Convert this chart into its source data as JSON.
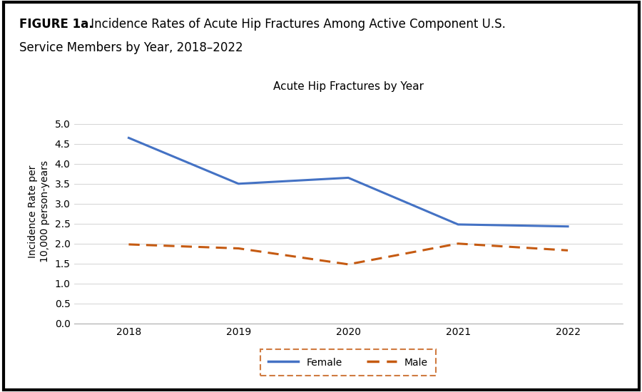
{
  "title": "Acute Hip Fractures by Year",
  "figure_label": "FIGURE 1a.",
  "figure_title_rest": " Incidence Rates of Acute Hip Fractures Among Active Component U.S.\nService Members by Year, 2018–2022",
  "xlabel": "",
  "ylabel": "Incidence Rate per\n10,000 person-years",
  "years": [
    2018,
    2019,
    2020,
    2021,
    2022
  ],
  "female_values": [
    4.65,
    3.5,
    3.65,
    2.48,
    2.43
  ],
  "male_values": [
    1.98,
    1.88,
    1.48,
    2.0,
    1.83
  ],
  "female_color": "#4472C4",
  "male_color": "#C55A11",
  "ylim": [
    0.0,
    5.6
  ],
  "yticks": [
    0.0,
    0.5,
    1.0,
    1.5,
    2.0,
    2.5,
    3.0,
    3.5,
    4.0,
    4.5,
    5.0
  ],
  "background_color": "#ffffff",
  "legend_box_color": "#C55A11",
  "chart_title_fontsize": 11,
  "axis_label_fontsize": 10,
  "tick_fontsize": 10,
  "header_fontsize": 12,
  "line_width": 2.2
}
